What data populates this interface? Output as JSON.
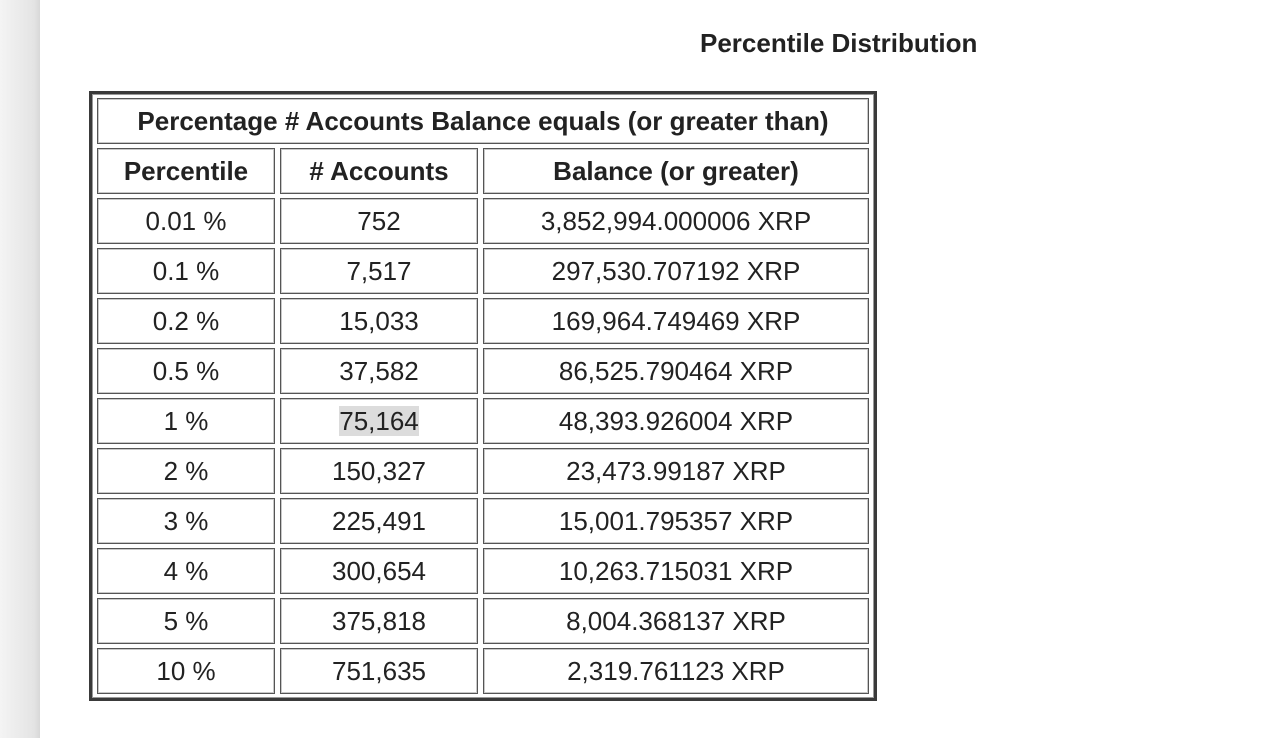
{
  "title": "Percentile Distribution",
  "table": {
    "caption": "Percentage # Accounts Balance equals (or greater than)",
    "headers": [
      "Percentile",
      "# Accounts",
      "Balance (or greater)"
    ],
    "rows": [
      [
        "0.01 %",
        "752",
        "3,852,994.000006 XRP"
      ],
      [
        "0.1 %",
        "7,517",
        "297,530.707192 XRP"
      ],
      [
        "0.2 %",
        "15,033",
        "169,964.749469 XRP"
      ],
      [
        "0.5 %",
        "37,582",
        "86,525.790464 XRP"
      ],
      [
        "1 %",
        "75,164",
        "48,393.926004 XRP"
      ],
      [
        "2 %",
        "150,327",
        "23,473.99187 XRP"
      ],
      [
        "3 %",
        "225,491",
        "15,001.795357 XRP"
      ],
      [
        "4 %",
        "300,654",
        "10,263.715031 XRP"
      ],
      [
        "5 %",
        "375,818",
        "8,004.368137 XRP"
      ],
      [
        "10 %",
        "751,635",
        "2,319.761123 XRP"
      ]
    ]
  }
}
